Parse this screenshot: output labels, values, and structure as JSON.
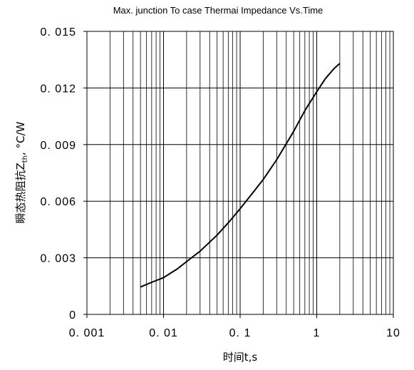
{
  "chart_data": {
    "type": "line",
    "title": "Max. junction To case Thermai Impedance Vs.Time",
    "xlabel": "时间t,s",
    "ylabel": "瞬态热阻抗Z",
    "ylabel_sub": "th",
    "ylabel_unit": ", °C/W",
    "xscale": "log",
    "xlim": [
      0.001,
      10
    ],
    "ylim": [
      0,
      0.015
    ],
    "x_ticks": [
      {
        "value": 0.001,
        "label": "0. 001"
      },
      {
        "value": 0.01,
        "label": "0. 01"
      },
      {
        "value": 0.1,
        "label": "0. 1"
      },
      {
        "value": 1,
        "label": "1"
      },
      {
        "value": 10,
        "label": "10"
      }
    ],
    "y_ticks": [
      {
        "value": 0,
        "label": "0"
      },
      {
        "value": 0.003,
        "label": "0. 003"
      },
      {
        "value": 0.006,
        "label": "0. 006"
      },
      {
        "value": 0.009,
        "label": "0. 009"
      },
      {
        "value": 0.012,
        "label": "0. 012"
      },
      {
        "value": 0.015,
        "label": "0. 015"
      }
    ],
    "grid": true,
    "series": [
      {
        "color": "#000000",
        "x": [
          0.005,
          0.007,
          0.01,
          0.015,
          0.02,
          0.03,
          0.05,
          0.07,
          0.1,
          0.15,
          0.2,
          0.3,
          0.5,
          0.7,
          1.0,
          1.3,
          1.7,
          2.0
        ],
        "y": [
          0.00145,
          0.0017,
          0.00195,
          0.0024,
          0.0028,
          0.00335,
          0.0042,
          0.00485,
          0.0056,
          0.0065,
          0.00715,
          0.0082,
          0.0097,
          0.0108,
          0.0118,
          0.0125,
          0.01305,
          0.0133
        ]
      }
    ]
  }
}
